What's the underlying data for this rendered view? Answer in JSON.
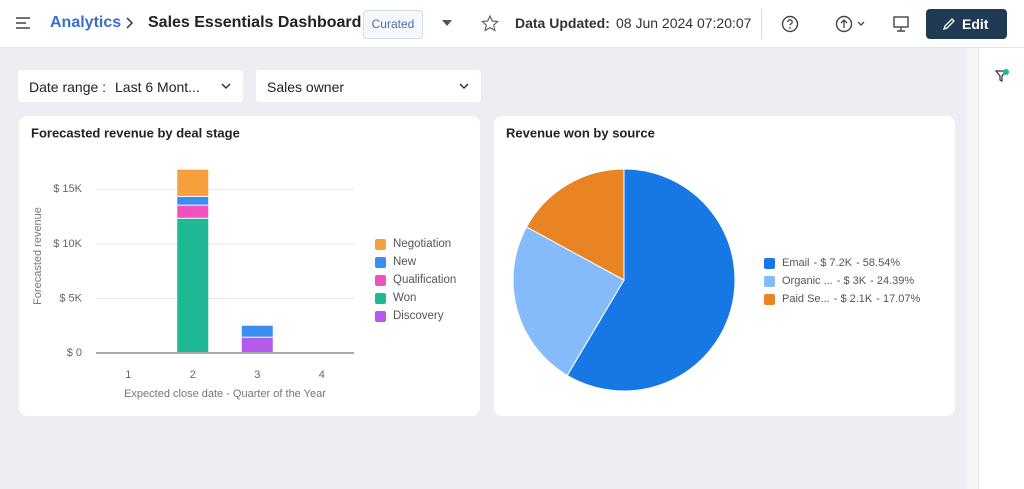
{
  "header": {
    "breadcrumb": "Analytics",
    "title": "Sales Essentials Dashboard",
    "badge": "Curated",
    "updated_label": "Data Updated:",
    "updated_value": "08 Jun 2024 07:20:07",
    "edit_button": "Edit"
  },
  "filters": [
    {
      "label": "Date range :",
      "value": "Last 6 Mont..."
    },
    {
      "label": "Sales owner"
    }
  ],
  "chart_data": [
    {
      "type": "bar",
      "stacked": true,
      "title": "Forecasted revenue by deal stage",
      "x_label": "Expected close date - Quarter of the Year",
      "y_label": "Forecasted revenue",
      "categories": [
        "1",
        "2",
        "3",
        "4"
      ],
      "series": [
        {
          "name": "Negotiation",
          "color": "#f5a03c",
          "values": [
            0,
            2500,
            0,
            0
          ]
        },
        {
          "name": "New",
          "color": "#3a8ef0",
          "values": [
            0,
            800,
            1100,
            0
          ]
        },
        {
          "name": "Qualification",
          "color": "#f250be",
          "values": [
            0,
            1200,
            0,
            0
          ]
        },
        {
          "name": "Won",
          "color": "#1fb894",
          "values": [
            0,
            12300,
            0,
            0
          ]
        },
        {
          "name": "Discovery",
          "color": "#b558ec",
          "values": [
            0,
            0,
            1400,
            0
          ]
        }
      ],
      "ylim": [
        0,
        17500
      ],
      "yticks": [
        {
          "value": 0,
          "label": "$ 0"
        },
        {
          "value": 5000,
          "label": "$ 5K"
        },
        {
          "value": 10000,
          "label": "$ 10K"
        },
        {
          "value": 15000,
          "label": "$ 15K"
        }
      ],
      "grid": true,
      "legend": "right"
    },
    {
      "type": "pie",
      "title": "Revenue won by source",
      "categories": [
        "Email",
        "Organic ...",
        "Paid Se..."
      ],
      "values": [
        58.54,
        24.39,
        17.07
      ],
      "value_labels": [
        "58.54%",
        "24.39%",
        "17.07%"
      ],
      "amounts": [
        7200,
        3000,
        2100
      ],
      "amount_labels": [
        "$ 7.2K",
        "$ 3K",
        "$ 2.1K"
      ],
      "colors": [
        "#1677e5",
        "#85bbfb",
        "#e98424"
      ],
      "legend": "right"
    }
  ]
}
